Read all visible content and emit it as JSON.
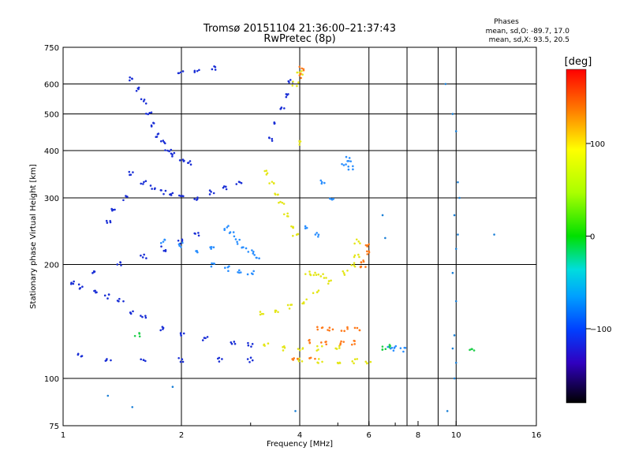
{
  "chart_data": {
    "type": "scatter",
    "title": "Tromsø 20151104 21:36:00–21:37:43",
    "subtitle": "RwPretec (8p)",
    "info": {
      "heading": "Phases",
      "line1": "mean, sd,O: -89.7, 17.0",
      "line2": "mean, sd,X:  93.5, 20.5"
    },
    "xlabel": "Frequency [MHz]",
    "ylabel": "Stationary phase Virtual Height [km]",
    "x_scale": "log",
    "y_scale": "log",
    "xlim": [
      1,
      16
    ],
    "ylim": [
      75,
      750
    ],
    "xticks": [
      1,
      2,
      4,
      6,
      8,
      10,
      16
    ],
    "xtick_labels": [
      "1",
      "2",
      "4",
      "6",
      "8",
      "10",
      "16"
    ],
    "x_gridlines": [
      2,
      4,
      6,
      7.5,
      9,
      10
    ],
    "xtick_positions_minor": [
      3,
      5,
      6,
      7,
      8,
      9
    ],
    "yticks": [
      75,
      100,
      200,
      300,
      400,
      500,
      600,
      750
    ],
    "ytick_labels": [
      "75",
      "100",
      "200",
      "300",
      "400",
      "500",
      "600",
      "750"
    ],
    "y_gridlines": [
      100,
      200,
      300,
      400,
      500,
      600
    ],
    "grid": true,
    "colorbar": {
      "label": "[deg]",
      "range": [
        -180,
        180
      ],
      "ticks": [
        100,
        0,
        -100
      ],
      "tick_labels": [
        "100",
        "0",
        "−100"
      ]
    },
    "series": [
      {
        "color": "#1a2fd6",
        "phase": -100,
        "points": [
          [
            1.5,
            620
          ],
          [
            1.55,
            580
          ],
          [
            1.6,
            540
          ],
          [
            1.65,
            500
          ],
          [
            1.7,
            470
          ],
          [
            1.75,
            440
          ],
          [
            1.8,
            420
          ],
          [
            1.85,
            400
          ],
          [
            1.9,
            390
          ],
          [
            2.0,
            380
          ],
          [
            2.1,
            370
          ],
          [
            1.5,
            350
          ],
          [
            1.6,
            330
          ],
          [
            1.7,
            320
          ],
          [
            1.8,
            310
          ],
          [
            1.9,
            305
          ],
          [
            2.0,
            300
          ],
          [
            2.2,
            300
          ],
          [
            2.4,
            310
          ],
          [
            2.6,
            320
          ],
          [
            2.8,
            330
          ],
          [
            1.05,
            180
          ],
          [
            1.1,
            175
          ],
          [
            1.2,
            170
          ],
          [
            1.3,
            165
          ],
          [
            1.4,
            160
          ],
          [
            1.5,
            150
          ],
          [
            1.6,
            145
          ],
          [
            1.8,
            135
          ],
          [
            2.0,
            130
          ],
          [
            2.3,
            127
          ],
          [
            2.7,
            125
          ],
          [
            3.0,
            123
          ],
          [
            1.1,
            115
          ],
          [
            1.3,
            112
          ],
          [
            1.6,
            112
          ],
          [
            2.0,
            112
          ],
          [
            2.5,
            112
          ],
          [
            3.0,
            112
          ],
          [
            1.2,
            190
          ],
          [
            1.4,
            200
          ],
          [
            1.6,
            210
          ],
          [
            1.8,
            220
          ],
          [
            2.0,
            230
          ],
          [
            2.2,
            240
          ],
          [
            3.4,
            430
          ],
          [
            3.5,
            470
          ],
          [
            3.6,
            520
          ],
          [
            3.7,
            560
          ],
          [
            3.8,
            610
          ],
          [
            2.0,
            640
          ],
          [
            2.2,
            650
          ],
          [
            2.4,
            660
          ],
          [
            1.3,
            260
          ],
          [
            1.35,
            280
          ],
          [
            1.45,
            300
          ]
        ]
      },
      {
        "color": "#2a8fff",
        "phase": -40,
        "points": [
          [
            2.6,
            250
          ],
          [
            2.7,
            240
          ],
          [
            2.8,
            230
          ],
          [
            2.9,
            222
          ],
          [
            3.0,
            215
          ],
          [
            3.1,
            210
          ],
          [
            2.4,
            200
          ],
          [
            2.6,
            195
          ],
          [
            2.8,
            192
          ],
          [
            3.0,
            190
          ],
          [
            2.2,
            215
          ],
          [
            2.4,
            220
          ],
          [
            4.2,
            250
          ],
          [
            4.4,
            240
          ],
          [
            4.6,
            330
          ],
          [
            4.8,
            300
          ],
          [
            5.2,
            370
          ],
          [
            5.3,
            380
          ],
          [
            5.4,
            360
          ],
          [
            1.8,
            230
          ],
          [
            2.0,
            225
          ],
          [
            6.8,
            120
          ],
          [
            7.0,
            120
          ],
          [
            7.3,
            119
          ]
        ]
      },
      {
        "color": "#e4e619",
        "phase": 100,
        "points": [
          [
            3.3,
            350
          ],
          [
            3.4,
            330
          ],
          [
            3.5,
            310
          ],
          [
            3.6,
            290
          ],
          [
            3.7,
            270
          ],
          [
            3.8,
            250
          ],
          [
            3.9,
            240
          ],
          [
            4.0,
            420
          ],
          [
            3.9,
            600
          ],
          [
            4.0,
            640
          ],
          [
            3.2,
            148
          ],
          [
            3.5,
            150
          ],
          [
            3.8,
            155
          ],
          [
            4.1,
            160
          ],
          [
            4.4,
            170
          ],
          [
            4.8,
            180
          ],
          [
            5.2,
            190
          ],
          [
            5.5,
            200
          ],
          [
            5.6,
            210
          ],
          [
            5.6,
            230
          ],
          [
            4.0,
            112
          ],
          [
            4.5,
            111
          ],
          [
            5.0,
            111
          ],
          [
            5.5,
            111
          ],
          [
            6.0,
            111
          ],
          [
            3.3,
            122
          ],
          [
            3.6,
            120
          ],
          [
            4.0,
            120
          ],
          [
            4.5,
            120
          ],
          [
            5.0,
            121
          ],
          [
            4.2,
            190
          ],
          [
            4.4,
            188
          ],
          [
            4.6,
            186
          ]
        ]
      },
      {
        "color": "#ff7a1a",
        "phase": 150,
        "points": [
          [
            4.5,
            135
          ],
          [
            4.8,
            135
          ],
          [
            5.2,
            135
          ],
          [
            5.6,
            135
          ],
          [
            4.2,
            125
          ],
          [
            4.6,
            124
          ],
          [
            5.1,
            124
          ],
          [
            5.5,
            124
          ],
          [
            3.9,
            112
          ],
          [
            4.3,
            112
          ],
          [
            5.8,
            205
          ],
          [
            5.9,
            215
          ],
          [
            5.9,
            225
          ],
          [
            5.8,
            195
          ],
          [
            4.05,
            660
          ],
          [
            4.0,
            630
          ]
        ]
      },
      {
        "color": "#1fcf4a",
        "phase": 60,
        "points": [
          [
            6.5,
            120
          ],
          [
            6.7,
            121
          ],
          [
            11.0,
            120
          ],
          [
            1.55,
            130
          ]
        ]
      }
    ],
    "sparse": {
      "color": "#1a7fd6",
      "points": [
        [
          9.4,
          600
        ],
        [
          9.8,
          500
        ],
        [
          10.0,
          450
        ],
        [
          10.1,
          330
        ],
        [
          10.2,
          300
        ],
        [
          9.9,
          270
        ],
        [
          10.1,
          240
        ],
        [
          10.0,
          220
        ],
        [
          9.8,
          190
        ],
        [
          10.0,
          160
        ],
        [
          9.9,
          130
        ],
        [
          9.8,
          120
        ],
        [
          10.0,
          110
        ],
        [
          9.9,
          100
        ],
        [
          9.5,
          82
        ],
        [
          1.3,
          90
        ],
        [
          1.5,
          84
        ],
        [
          1.9,
          95
        ],
        [
          3.9,
          82
        ],
        [
          12.5,
          240
        ],
        [
          6.6,
          235
        ],
        [
          6.5,
          270
        ]
      ]
    }
  }
}
